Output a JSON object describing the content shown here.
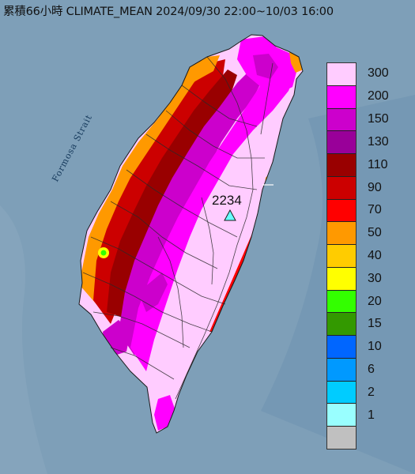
{
  "title": "累積66小時 CLIMATE_MEAN 2024/09/30 22:00~10/03 16:00",
  "strait_label": "Formosa Strait",
  "max_station": {
    "value": "2234",
    "marker": "triangle-marker"
  },
  "legend": {
    "ticks": [
      "300",
      "200",
      "150",
      "130",
      "110",
      "90",
      "70",
      "50",
      "40",
      "30",
      "20",
      "15",
      "10",
      "6",
      "2",
      "1"
    ],
    "colors": [
      "#ffccff",
      "#ff00ff",
      "#cc00cc",
      "#990099",
      "#990000",
      "#cc0000",
      "#ff0000",
      "#ff9900",
      "#ffcc00",
      "#ffff00",
      "#33ff00",
      "#339900",
      "#0066ff",
      "#0099ff",
      "#00ccff",
      "#99ffff",
      "#c0c0c0"
    ]
  },
  "colors": {
    "sea": "#7e9fb8",
    "land_pink": "#ffccff",
    "magenta": "#ff00ff",
    "purple": "#cc00cc",
    "dark_red": "#990000",
    "red": "#cc0000",
    "orange": "#ff9900"
  }
}
